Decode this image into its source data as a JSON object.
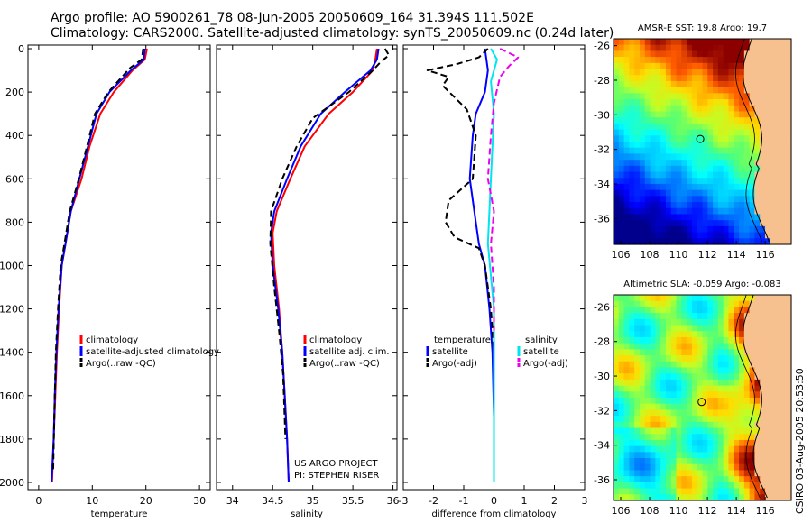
{
  "header": {
    "title_line1": "Argo profile: AO 5900261_78 08-Jun-2005 20050609_164 31.394S 111.502E",
    "title_line2": "Climatology: CARS2000. Satellite-adjusted climatology: synTS_20050609.nc (0.24d later)"
  },
  "footer_stamp": "CSIRO 03-Aug-2005 20:53:50",
  "colors": {
    "climatology": "#ff0000",
    "satellite": "#0000ff",
    "argo": "#000000",
    "salinity_satellite": "#00e5ee",
    "salinity_argo": "#ee00ee",
    "land": "#f7c08f"
  },
  "chart_data": [
    {
      "id": "temperature",
      "type": "line",
      "xlabel": "temperature",
      "ylabel": "",
      "xlim": [
        -2,
        32
      ],
      "ylim": [
        2050,
        0
      ],
      "xticks": [
        0,
        10,
        20,
        30
      ],
      "yticks": [
        0,
        200,
        400,
        600,
        800,
        1000,
        1200,
        1400,
        1600,
        1800,
        2000
      ],
      "legend": [
        "climatology",
        "satellite-adjusted climatology",
        "Argo(..raw -QC)"
      ],
      "legend_position": "center-right",
      "series": [
        {
          "name": "climatology",
          "color": "#ff0000",
          "x": [
            20.2,
            19.8,
            17.5,
            14.0,
            11.5,
            9.5,
            8.0,
            6.0,
            5.0,
            4.3,
            3.8,
            3.4,
            3.1,
            2.8,
            2.5
          ],
          "y": [
            0,
            50,
            100,
            200,
            300,
            450,
            600,
            750,
            900,
            1000,
            1200,
            1400,
            1600,
            1800,
            2000
          ]
        },
        {
          "name": "satellite-adjusted climatology",
          "color": "#0000ff",
          "x": [
            19.8,
            19.6,
            17.2,
            13.2,
            10.8,
            9.2,
            7.6,
            6.0,
            5.0,
            4.3,
            3.7,
            3.3,
            3.0,
            2.8,
            2.4
          ],
          "y": [
            0,
            50,
            100,
            200,
            300,
            450,
            600,
            750,
            900,
            1000,
            1200,
            1400,
            1600,
            1800,
            2000
          ]
        },
        {
          "name": "Argo(..raw -QC)",
          "color": "#000000",
          "dash": true,
          "x": [
            19.5,
            19.2,
            17.0,
            13.0,
            10.5,
            9.0,
            7.5,
            5.8,
            4.8,
            4.1,
            3.6,
            3.2,
            3.0,
            2.7
          ],
          "y": [
            0,
            50,
            90,
            200,
            300,
            450,
            600,
            750,
            900,
            1000,
            1200,
            1400,
            1600,
            1950
          ]
        }
      ]
    },
    {
      "id": "salinity",
      "type": "line",
      "xlabel": "salinity",
      "ylabel": "",
      "xlim": [
        33.8,
        36.05
      ],
      "ylim": [
        2050,
        0
      ],
      "xticks": [
        34,
        34.5,
        35,
        35.5,
        36
      ],
      "yticks": [],
      "legend": [
        "climatology",
        "satellite adj. clim.",
        "Argo(..raw -QC)"
      ],
      "legend_position": "center-right",
      "annotation": [
        "US ARGO PROJECT",
        "PI: STEPHEN RISER"
      ],
      "series": [
        {
          "name": "climatology",
          "color": "#ff0000",
          "x": [
            35.8,
            35.78,
            35.75,
            35.5,
            35.2,
            34.9,
            34.72,
            34.55,
            34.5,
            34.52,
            34.58,
            34.62,
            34.65,
            34.68,
            34.7
          ],
          "y": [
            0,
            50,
            100,
            200,
            300,
            450,
            600,
            750,
            850,
            1000,
            1200,
            1400,
            1600,
            1800,
            2000
          ]
        },
        {
          "name": "satellite adj. clim.",
          "color": "#0000ff",
          "x": [
            35.82,
            35.8,
            35.72,
            35.4,
            35.1,
            34.85,
            34.68,
            34.52,
            34.48,
            34.5,
            34.57,
            34.62,
            34.65,
            34.68,
            34.7
          ],
          "y": [
            0,
            50,
            100,
            200,
            300,
            450,
            600,
            750,
            850,
            1000,
            1200,
            1400,
            1600,
            1800,
            2000
          ]
        },
        {
          "name": "Argo(..raw -QC)",
          "color": "#000000",
          "dash": true,
          "x": [
            35.9,
            35.95,
            35.85,
            35.75,
            35.45,
            35.0,
            34.8,
            34.62,
            34.48,
            34.47,
            34.52,
            34.58,
            34.63,
            34.66
          ],
          "y": [
            0,
            30,
            60,
            100,
            200,
            320,
            450,
            600,
            750,
            900,
            1100,
            1300,
            1500,
            1800
          ]
        }
      ]
    },
    {
      "id": "difference",
      "type": "line",
      "xlabel": "difference from climatology",
      "ylabel": "",
      "xlim": [
        -3,
        3
      ],
      "ylim": [
        2050,
        0
      ],
      "xticks": [
        -3,
        -2,
        -1,
        0,
        1,
        2,
        3
      ],
      "yticks": [],
      "legend_left": [
        "temperature",
        "satellite",
        "Argo(-adj)"
      ],
      "legend_right": [
        "salinity",
        "satellite",
        "Argo(-adj)"
      ],
      "legend_position": "center",
      "series": [
        {
          "name": "temperature satellite",
          "color": "#0000ff",
          "x": [
            -0.3,
            -0.2,
            -0.3,
            -0.6,
            -0.7,
            -0.8,
            -0.6,
            -0.5,
            -0.3,
            -0.15,
            -0.05,
            0,
            0
          ],
          "y": [
            0,
            100,
            200,
            300,
            400,
            600,
            800,
            900,
            1000,
            1200,
            1400,
            1700,
            2000
          ]
        },
        {
          "name": "temperature Argo(-adj)",
          "color": "#000000",
          "dash": true,
          "x": [
            -0.2,
            -0.5,
            -1.2,
            -2.2,
            -1.5,
            -1.7,
            -0.9,
            -0.6,
            -0.7,
            -1.5,
            -1.6,
            -1.3,
            -0.5,
            -0.3,
            -0.1,
            0
          ],
          "y": [
            0,
            40,
            70,
            100,
            130,
            170,
            280,
            400,
            600,
            700,
            800,
            870,
            920,
            1000,
            1200,
            1400
          ]
        },
        {
          "name": "salinity satellite",
          "color": "#00e5ee",
          "x": [
            -0.1,
            0.1,
            -0.1,
            0.0,
            -0.1,
            -0.2,
            0.0,
            0.0,
            0.0
          ],
          "y": [
            0,
            50,
            150,
            300,
            600,
            900,
            1200,
            1600,
            2000
          ]
        },
        {
          "name": "salinity Argo(-adj)",
          "color": "#ee00ee",
          "dash": true,
          "x": [
            0.2,
            0.8,
            0.5,
            0.2,
            0.0,
            -0.1,
            -0.2,
            0.0,
            -0.1,
            0.0,
            0.0
          ],
          "y": [
            0,
            40,
            80,
            130,
            250,
            400,
            600,
            750,
            900,
            1100,
            1300
          ]
        }
      ]
    },
    {
      "id": "sst_map",
      "type": "heatmap",
      "title": "AMSR-E SST: 19.8 Argo: 19.7",
      "xlim": [
        105.5,
        117.8
      ],
      "ylim": [
        -37.5,
        -25.6
      ],
      "xticks": [
        106,
        108,
        110,
        112,
        114,
        116
      ],
      "yticks": [
        -26,
        -28,
        -30,
        -32,
        -34,
        -36
      ],
      "marker": {
        "lon": 111.5,
        "lat": -31.4
      }
    },
    {
      "id": "sla_map",
      "type": "heatmap",
      "title": "Altimetric SLA: -0.059 Argo: -0.083",
      "xlim": [
        105.5,
        117.8
      ],
      "ylim": [
        -37.2,
        -25.3
      ],
      "xticks": [
        106,
        108,
        110,
        112,
        114,
        116
      ],
      "yticks": [
        -26,
        -28,
        -30,
        -32,
        -34,
        -36
      ],
      "marker": {
        "lon": 111.6,
        "lat": -31.5
      }
    }
  ]
}
